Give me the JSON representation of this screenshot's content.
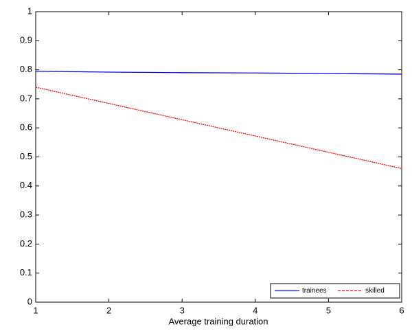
{
  "chart_data": {
    "type": "line",
    "x_label": "Average training duration",
    "x": [
      1,
      2,
      3,
      4,
      5,
      6
    ],
    "series": [
      {
        "name": "trainees",
        "color": "#0000ff",
        "dashed": false,
        "values": [
          0.795,
          0.792,
          0.79,
          0.789,
          0.787,
          0.785
        ]
      },
      {
        "name": "skilled",
        "color": "#ff0000",
        "dashed": true,
        "values": [
          0.74,
          0.684,
          0.628,
          0.572,
          0.516,
          0.46
        ]
      }
    ],
    "xlim": [
      1,
      6
    ],
    "xticks": [
      1,
      2,
      3,
      4,
      5,
      6
    ],
    "ylim": [
      0,
      1
    ],
    "yticks": [
      0,
      0.1,
      0.2,
      0.3,
      0.4,
      0.5,
      0.6,
      0.7,
      0.8,
      0.9,
      1
    ],
    "grid": false,
    "legend": "lower right"
  }
}
